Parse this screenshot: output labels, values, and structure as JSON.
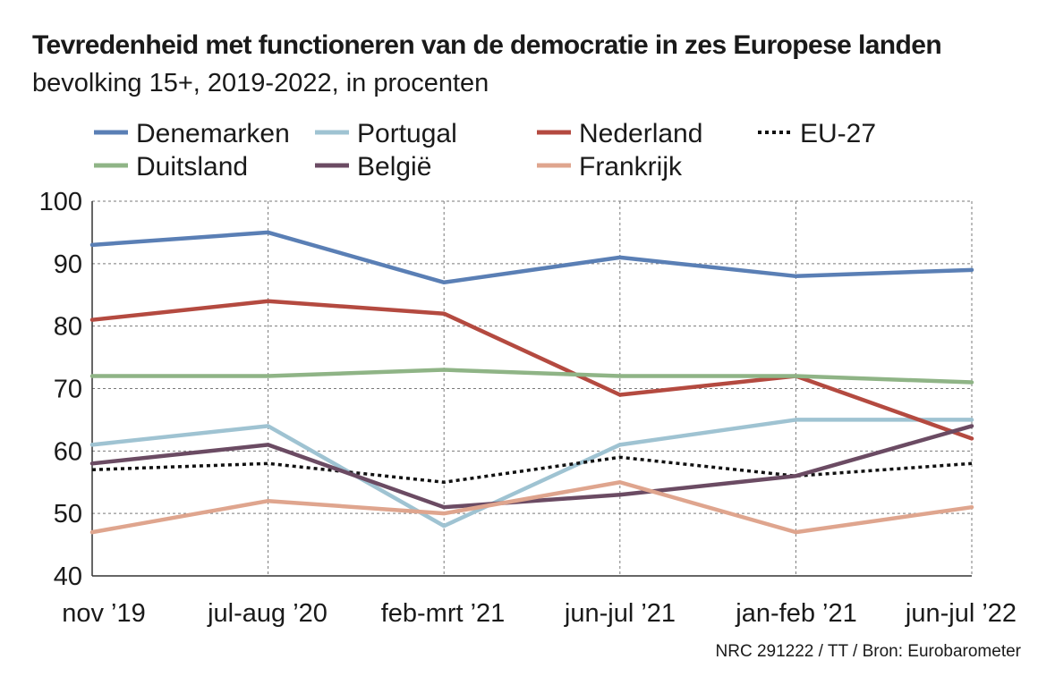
{
  "title": "Tevredenheid met functioneren van de democratie in zes Europese landen",
  "subtitle": "bevolking 15+, 2019-2022, in procenten",
  "source": "NRC 291222 / TT / Bron: Eurobarometer",
  "chart_data": {
    "type": "line",
    "title": "Tevredenheid met functioneren van de democratie in zes Europese landen",
    "subtitle": "bevolking 15+, 2019-2022, in procenten",
    "categories": [
      "nov ’19",
      "jul-aug ’20",
      "feb-mrt ’21",
      "jun-jul ’21",
      "jan-feb ’21",
      "jun-jul ’22"
    ],
    "ylim": [
      40,
      100
    ],
    "yticks": [
      40,
      50,
      60,
      70,
      80,
      90,
      100
    ],
    "grid": true,
    "legend_position": "top",
    "series": [
      {
        "name": "Denemarken",
        "color": "#5a7fb5",
        "style": "solid",
        "values": [
          93,
          95,
          87,
          91,
          88,
          89
        ]
      },
      {
        "name": "Portugal",
        "color": "#9fc3d2",
        "style": "solid",
        "values": [
          61,
          64,
          48,
          61,
          65,
          65
        ]
      },
      {
        "name": "Nederland",
        "color": "#b44a40",
        "style": "solid",
        "values": [
          81,
          84,
          82,
          69,
          72,
          62
        ]
      },
      {
        "name": "EU-27",
        "color": "#111111",
        "style": "dotted",
        "values": [
          57,
          58,
          55,
          59,
          56,
          58
        ]
      },
      {
        "name": "Duitsland",
        "color": "#8fb486",
        "style": "solid",
        "values": [
          72,
          72,
          73,
          72,
          72,
          71
        ]
      },
      {
        "name": "België",
        "color": "#6b4b63",
        "style": "solid",
        "values": [
          58,
          61,
          51,
          53,
          56,
          64
        ]
      },
      {
        "name": "Frankrijk",
        "color": "#dfa58e",
        "style": "solid",
        "values": [
          47,
          52,
          50,
          55,
          47,
          51
        ]
      }
    ]
  }
}
